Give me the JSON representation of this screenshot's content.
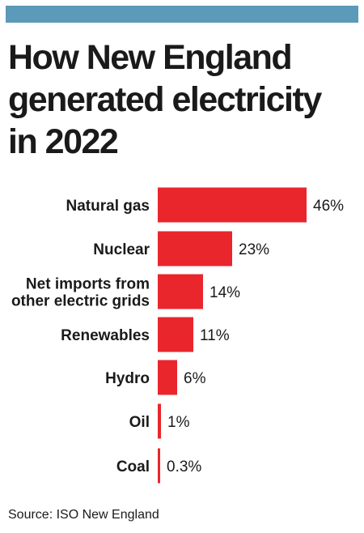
{
  "colors": {
    "top_bar": "#5b9ab8",
    "bar": "#e8262c"
  },
  "title": "How New England\ngenerated electricity\nin 2022",
  "source": "Source: ISO New England",
  "chart_data": {
    "type": "bar",
    "orientation": "horizontal",
    "title": "How New England\ngenerated electricity\nin 2022",
    "categories": [
      [
        "Natural gas"
      ],
      [
        "Nuclear"
      ],
      [
        "Net imports from",
        "other electric grids"
      ],
      [
        "Renewables"
      ],
      [
        "Hydro"
      ],
      [
        "Oil"
      ],
      [
        "Coal"
      ]
    ],
    "values": [
      46,
      23,
      14,
      11,
      6,
      1,
      0.3
    ],
    "value_labels": [
      "46%",
      "23%",
      "14%",
      "11%",
      "6%",
      "1%",
      "0.3%"
    ],
    "unit": "%",
    "xlim": [
      0,
      46
    ],
    "grid": false,
    "legend": "none"
  }
}
